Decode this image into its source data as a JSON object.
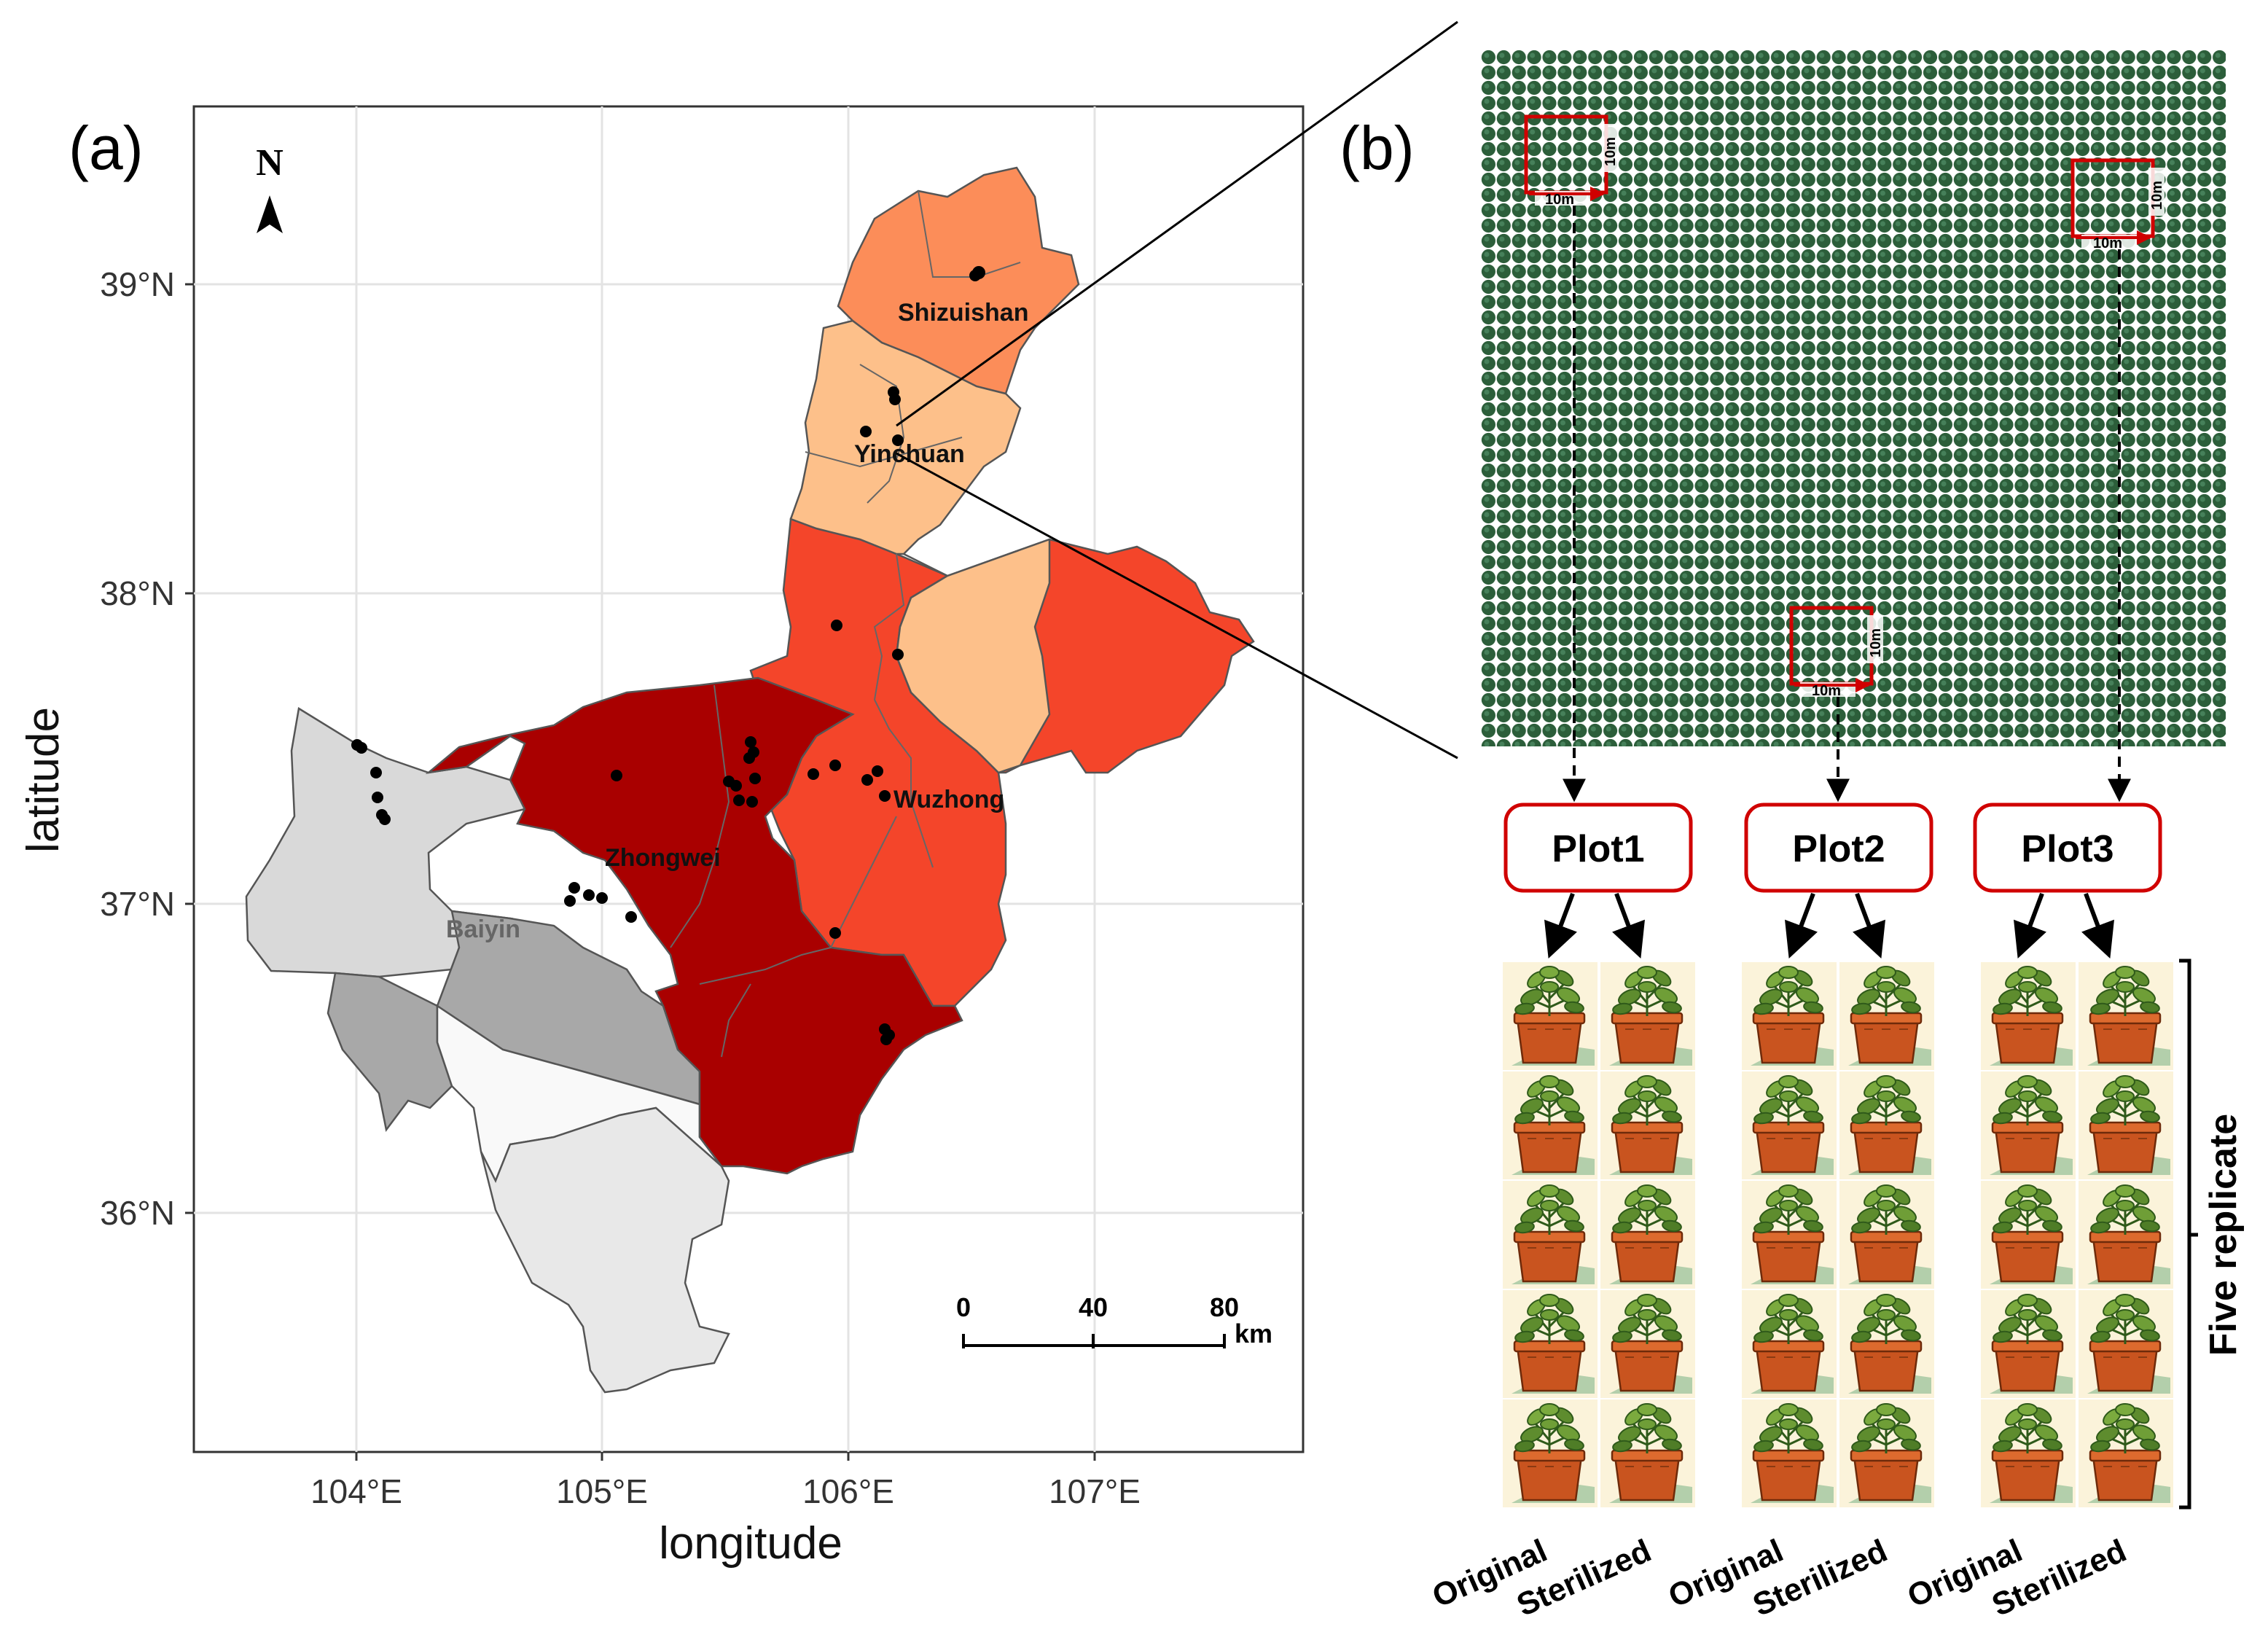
{
  "figure": {
    "panel_a_label": "(a)",
    "panel_b_label": "(b)"
  },
  "map": {
    "north_label": "N",
    "xlabel": "longitude",
    "ylabel": "latitude",
    "x_ticks": [
      "104°E",
      "105°E",
      "106°E",
      "107°E"
    ],
    "y_ticks": [
      "39°N",
      "38°N",
      "37°N",
      "36°N"
    ],
    "cities": [
      "Shizuishan",
      "Yinchuan",
      "Wuzhong",
      "Zhongwei",
      "Baiyin"
    ],
    "scale_bar": {
      "ticks": [
        "0",
        "40",
        "80"
      ],
      "unit": "km"
    },
    "colors": {
      "shizuishan": "#FC8D59",
      "yinchuan": "#FDC08A",
      "wuzhong": "#F4452A",
      "zhongwei": "#A90000",
      "baiyin_light": "#D9D9D9",
      "baiyin_mid": "#A8A8A8",
      "baiyin_white": "#F9F9F9",
      "baiyin_south": "#E8E8E8",
      "grid": "#E3E3E3"
    }
  },
  "field": {
    "dimension_label": "10m",
    "plant_color": "#2C5E3A",
    "quadrat_color": "#D00000"
  },
  "plots": [
    {
      "name": "Plot1",
      "left_label": "Original",
      "right_label": "Sterilized"
    },
    {
      "name": "Plot2",
      "left_label": "Original",
      "right_label": "Sterilized"
    },
    {
      "name": "Plot3",
      "left_label": "Original",
      "right_label": "Sterilized"
    }
  ],
  "replicate_label": "Five replicate"
}
